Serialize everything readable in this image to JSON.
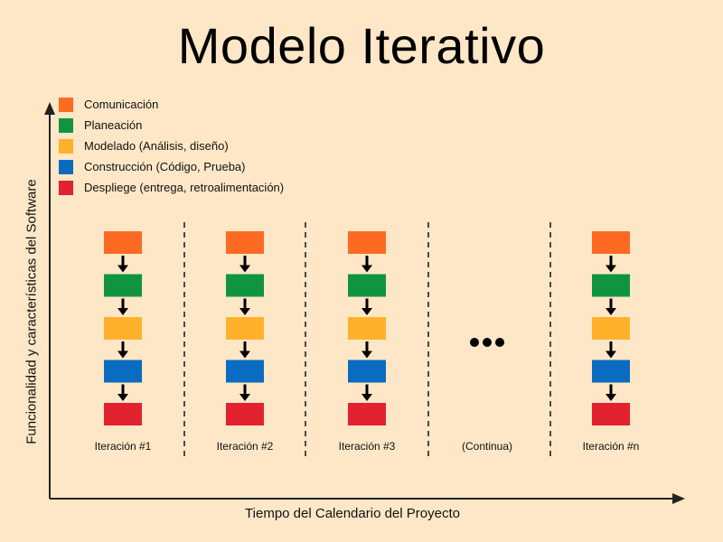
{
  "title": "Modelo Iterativo",
  "legend": [
    {
      "label": "Comunicación",
      "color": "#ff6a22",
      "icon": "orange-square-icon"
    },
    {
      "label": "Planeación",
      "color": "#109440",
      "icon": "green-square-icon"
    },
    {
      "label": "Modelado (Análisis, diseño)",
      "color": "#ffb12c",
      "icon": "yellow-square-icon"
    },
    {
      "label": "Construcción (Código, Prueba)",
      "color": "#0a6cc0",
      "icon": "blue-square-icon"
    },
    {
      "label": "Despliege (entrega, retroalimentación)",
      "color": "#e3222f",
      "icon": "red-square-icon"
    }
  ],
  "axes": {
    "y_label": "Funcionalidad y características del Software",
    "x_label": "Tiempo del Calendario del Proyecto"
  },
  "columns": [
    {
      "label": "Iteración #1",
      "type": "iteration"
    },
    {
      "label": "Iteración #2",
      "type": "iteration"
    },
    {
      "label": "Iteración #3",
      "type": "iteration"
    },
    {
      "label": "(Continua)",
      "type": "ellipsis"
    },
    {
      "label": "Iteración #n",
      "type": "iteration"
    }
  ]
}
